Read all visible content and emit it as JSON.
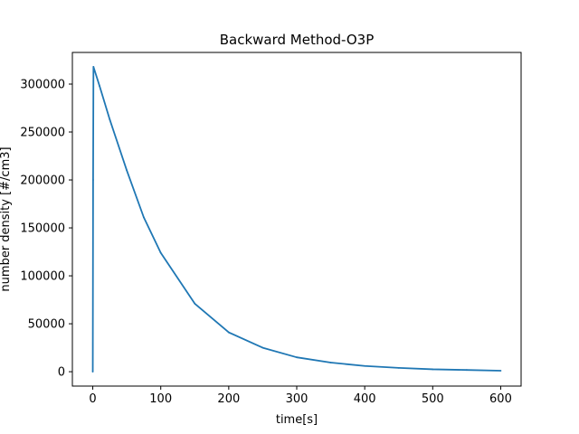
{
  "chart_data": {
    "type": "line",
    "title": "Backward Method-O3P",
    "xlabel": "time[s]",
    "ylabel": "number density [#/cm3]",
    "xlim": [
      -30,
      630
    ],
    "ylim": [
      -15000,
      333000
    ],
    "grid": false,
    "x_ticks": [
      {
        "value": 0,
        "label": "0"
      },
      {
        "value": 100,
        "label": "100"
      },
      {
        "value": 200,
        "label": "200"
      },
      {
        "value": 300,
        "label": "300"
      },
      {
        "value": 400,
        "label": "400"
      },
      {
        "value": 500,
        "label": "500"
      },
      {
        "value": 600,
        "label": "600"
      }
    ],
    "y_ticks": [
      {
        "value": 0,
        "label": "0"
      },
      {
        "value": 50000,
        "label": "50000"
      },
      {
        "value": 100000,
        "label": "100000"
      },
      {
        "value": 150000,
        "label": "150000"
      },
      {
        "value": 200000,
        "label": "200000"
      },
      {
        "value": 250000,
        "label": "250000"
      },
      {
        "value": 300000,
        "label": "300000"
      }
    ],
    "series": [
      {
        "color": "#1f77b4",
        "x": [
          0,
          0.5,
          1,
          10,
          25,
          50,
          75,
          100,
          150,
          200,
          250,
          300,
          350,
          400,
          450,
          500,
          550,
          600
        ],
        "y": [
          0,
          200000,
          318000,
          298000,
          263000,
          210000,
          161000,
          124000,
          71000,
          41000,
          25000,
          15000,
          9500,
          6000,
          4000,
          2500,
          1800,
          1000
        ]
      }
    ]
  }
}
